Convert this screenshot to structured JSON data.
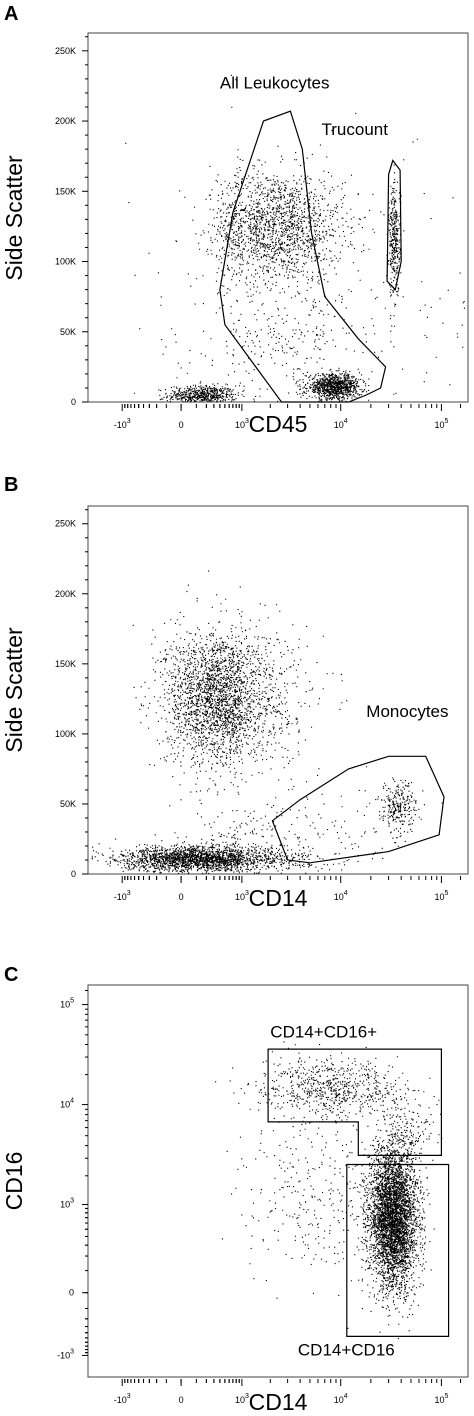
{
  "chart_data": [
    {
      "type": "scatter",
      "panel_letter": "A",
      "xlabel": "CD45",
      "ylabel": "Side Scatter",
      "x_scale": "biexponential",
      "y_scale": "linear",
      "ylim": [
        0,
        262144
      ],
      "x_ticks": [
        {
          "label": "-10",
          "exp": "3",
          "value": -1000
        },
        {
          "label": "0",
          "exp": "",
          "value": 0
        },
        {
          "label": "10",
          "exp": "3",
          "value": 1000
        },
        {
          "label": "10",
          "exp": "4",
          "value": 10000
        },
        {
          "label": "10",
          "exp": "5",
          "value": 100000
        }
      ],
      "y_ticks": [
        {
          "label": "0",
          "value": 0
        },
        {
          "label": "50K",
          "value": 50000
        },
        {
          "label": "100K",
          "value": 100000
        },
        {
          "label": "150K",
          "value": 150000
        },
        {
          "label": "200K",
          "value": 200000
        },
        {
          "label": "250K",
          "value": 250000
        }
      ],
      "populations": [
        {
          "cx": 150,
          "cy": 5000,
          "sx": 0.25,
          "sy": 3500,
          "n": 600
        },
        {
          "cx": 2200,
          "cy": 125000,
          "sx": 0.33,
          "sy": 20000,
          "n": 1700
        },
        {
          "cx": 2800,
          "cy": 45000,
          "sx": 0.45,
          "sy": 16000,
          "n": 200
        },
        {
          "cx": 8500,
          "cy": 11000,
          "sx": 0.13,
          "sy": 4500,
          "n": 1000
        },
        {
          "cx": 34000,
          "cy": 115000,
          "sx": 0.03,
          "sy": 20000,
          "n": 350
        },
        {
          "cx": 5000,
          "cy": 40000,
          "sx": 1.3,
          "sy": 70000,
          "n": 250
        }
      ],
      "gates": [
        {
          "name": "All Leukocytes",
          "label_at": [
            400,
            223000
          ],
          "points": [
            [
              400,
              80000
            ],
            [
              700,
              135000
            ],
            [
              1700,
              200000
            ],
            [
              3200,
              207000
            ],
            [
              4200,
              180000
            ],
            [
              5200,
              120000
            ],
            [
              7000,
              75000
            ],
            [
              15000,
              45000
            ],
            [
              28000,
              25000
            ],
            [
              25000,
              10000
            ],
            [
              18000,
              5000
            ],
            [
              12000,
              0
            ],
            [
              2600,
              0
            ],
            [
              500,
              55000
            ]
          ]
        },
        {
          "name": "Trucount",
          "label_at": [
            6500,
            190000
          ],
          "points": [
            [
              33000,
              172000
            ],
            [
              39000,
              165000
            ],
            [
              40000,
              100000
            ],
            [
              35000,
              80000
            ],
            [
              29000,
              86000
            ],
            [
              30000,
              162000
            ]
          ]
        }
      ]
    },
    {
      "type": "scatter",
      "panel_letter": "B",
      "xlabel": "CD14",
      "ylabel": "Side Scatter",
      "x_scale": "biexponential",
      "y_scale": "linear",
      "ylim": [
        0,
        262144
      ],
      "x_ticks": [
        {
          "label": "-10",
          "exp": "3",
          "value": -1000
        },
        {
          "label": "0",
          "exp": "",
          "value": 0
        },
        {
          "label": "10",
          "exp": "3",
          "value": 1000
        },
        {
          "label": "10",
          "exp": "4",
          "value": 10000
        },
        {
          "label": "10",
          "exp": "5",
          "value": 100000
        }
      ],
      "y_ticks": [
        {
          "label": "0",
          "value": 0
        },
        {
          "label": "50K",
          "value": 50000
        },
        {
          "label": "100K",
          "value": 100000
        },
        {
          "label": "150K",
          "value": 150000
        },
        {
          "label": "200K",
          "value": 200000
        },
        {
          "label": "250K",
          "value": 250000
        }
      ],
      "populations": [
        {
          "cx": 400,
          "cy": 126000,
          "sx": 0.4,
          "sy": 24000,
          "n": 2600
        },
        {
          "cx": 150,
          "cy": 11000,
          "sx": 0.6,
          "sy": 4500,
          "n": 2200
        },
        {
          "cx": 37000,
          "cy": 48000,
          "sx": 0.09,
          "sy": 9000,
          "n": 260
        },
        {
          "cx": 9000,
          "cy": 40000,
          "sx": 0.45,
          "sy": 14000,
          "n": 70
        },
        {
          "cx": 1200,
          "cy": 25000,
          "sx": 0.4,
          "sy": 12000,
          "n": 150
        }
      ],
      "gates": [
        {
          "name": "Monocytes",
          "label_at": [
            18000,
            112000
          ],
          "points": [
            [
              2100,
              38000
            ],
            [
              4000,
              53000
            ],
            [
              12000,
              75000
            ],
            [
              30000,
              84000
            ],
            [
              70000,
              84000
            ],
            [
              110000,
              55000
            ],
            [
              95000,
              28000
            ],
            [
              30000,
              16000
            ],
            [
              5000,
              8000
            ],
            [
              3000,
              10000
            ]
          ]
        }
      ]
    },
    {
      "type": "scatter",
      "panel_letter": "C",
      "xlabel": "CD14",
      "ylabel": "CD16",
      "x_scale": "biexponential",
      "y_scale": "biexponential",
      "x_ticks": [
        {
          "label": "-10",
          "exp": "3",
          "value": -1000
        },
        {
          "label": "0",
          "exp": "",
          "value": 0
        },
        {
          "label": "10",
          "exp": "3",
          "value": 1000
        },
        {
          "label": "10",
          "exp": "4",
          "value": 10000
        },
        {
          "label": "10",
          "exp": "5",
          "value": 100000
        }
      ],
      "y_ticks": [
        {
          "label": "-10",
          "exp": "3",
          "value": -1000
        },
        {
          "label": "0",
          "exp": "",
          "value": 0
        },
        {
          "label": "10",
          "exp": "3",
          "value": 1000
        },
        {
          "label": "10",
          "exp": "4",
          "value": 10000
        },
        {
          "label": "10",
          "exp": "5",
          "value": 100000
        }
      ],
      "populations": [
        {
          "cx": 33000,
          "cy": 700,
          "sx": 0.12,
          "sy": 0.35,
          "n": 4200
        },
        {
          "cx": 8000,
          "cy": 15000,
          "sx": 0.35,
          "sy": 0.14,
          "n": 700
        },
        {
          "cx": 45000,
          "cy": 5500,
          "sx": 0.12,
          "sy": 0.18,
          "n": 150
        },
        {
          "cx": 5000,
          "cy": 1200,
          "sx": 0.35,
          "sy": 0.4,
          "n": 280
        }
      ],
      "gates": [
        {
          "name": "CD14+CD16+",
          "label_at": [
            2000,
            47000
          ],
          "points": [
            [
              1900,
              36000
            ],
            [
              100000,
              36000
            ],
            [
              100000,
              3200
            ],
            [
              15000,
              3200
            ],
            [
              15000,
              6800
            ],
            [
              1900,
              6800
            ]
          ]
        },
        {
          "name": "CD14+CD16",
          "label_at": [
            3800,
            -1000
          ],
          "points": [
            [
              11500,
              2600
            ],
            [
              130000,
              2600
            ],
            [
              130000,
              -470
            ],
            [
              11500,
              -470
            ]
          ]
        }
      ]
    }
  ],
  "colors": {
    "dots": "#000000",
    "gate": "#000000",
    "frame": "#444444"
  }
}
